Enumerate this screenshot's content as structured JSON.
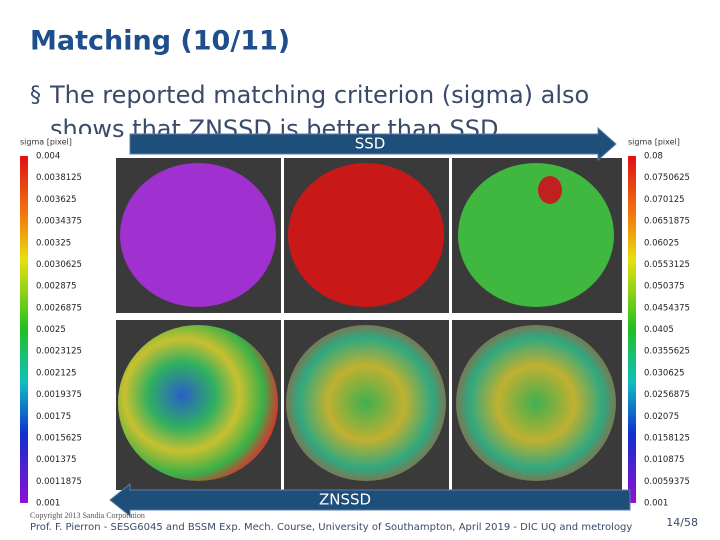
{
  "header": {
    "title": "Matching (10/11)"
  },
  "bullet": {
    "text": "The reported matching criterion (sigma) also shows that ZNSSD is better than SSD"
  },
  "colorbars": [
    {
      "heading": "sigma [pixel]",
      "labels": [
        "0.004",
        "0.0038125",
        "0.003625",
        "0.0034375",
        "0.00325",
        "0.0030625",
        "0.002875",
        "0.0026875",
        "0.0025",
        "0.0023125",
        "0.002125",
        "0.0019375",
        "0.00175",
        "0.0015625",
        "0.001375",
        "0.0011875",
        "0.001"
      ]
    },
    {
      "heading": "sigma [pixel]",
      "labels": [
        "0.08",
        "0.0750625",
        "0.070125",
        "0.0651875",
        "0.06025",
        "0.0553125",
        "0.050375",
        "0.0454375",
        "0.0405",
        "0.0355625",
        "0.030625",
        "0.0256875",
        "0.02075",
        "0.0158125",
        "0.010875",
        "0.0059375",
        "0.001"
      ]
    }
  ],
  "arrows": {
    "top": "SSD",
    "bottom": "ZNSSD"
  },
  "footer": {
    "copyright": "Copyright 2013 Sandia Corporation",
    "credit": "Prof. F. Pierron - SESG6045 and BSSM Exp. Mech. Course, University of Southampton, April 2019 - DIC UQ and metrology",
    "page": "14/58"
  }
}
